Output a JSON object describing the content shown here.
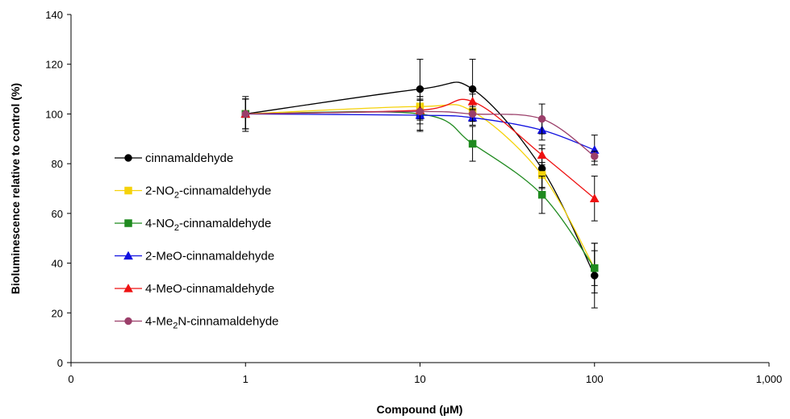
{
  "chart_data": {
    "type": "line",
    "title": "",
    "xlabel": "Compound (µM)",
    "ylabel": "Bioluminescence relative to control (%)",
    "xscale": "log",
    "xlim": [
      0.1,
      1000
    ],
    "ylim": [
      0,
      140
    ],
    "x_ticks": [
      0.1,
      1,
      10,
      100,
      1000
    ],
    "x_tick_labels": [
      "0",
      "1",
      "10",
      "100",
      "1,000"
    ],
    "y_ticks": [
      0,
      20,
      40,
      60,
      80,
      100,
      120,
      140
    ],
    "y_tick_labels": [
      "0",
      "20",
      "40",
      "60",
      "80",
      "100",
      "120",
      "140"
    ],
    "grid": false,
    "legend_position": "left",
    "series": [
      {
        "name": "cinnamaldehyde",
        "name_parts": [
          "cinnamaldehyde"
        ],
        "color": "#000000",
        "marker": "circle",
        "x": [
          1,
          10,
          20,
          50,
          100
        ],
        "y": [
          100,
          110,
          110,
          78,
          35
        ],
        "error": [
          7,
          12,
          12,
          8,
          13
        ]
      },
      {
        "name": "2-NO2-cinnamaldehyde",
        "name_parts": [
          "2-NO",
          "2",
          "-cinnamaldehyde"
        ],
        "color": "#f5d20a",
        "marker": "square",
        "x": [
          1,
          10,
          20,
          50,
          100
        ],
        "y": [
          100,
          103,
          101,
          75.5,
          38
        ],
        "error": [
          6,
          4,
          3,
          5,
          10
        ]
      },
      {
        "name": "4-NO2-cinnamaldehyde",
        "name_parts": [
          "4-NO",
          "2",
          "-cinnamaldehyde"
        ],
        "color": "#1f8a1f",
        "marker": "square",
        "x": [
          1,
          10,
          20,
          50,
          100
        ],
        "y": [
          100,
          100,
          88,
          67.5,
          38
        ],
        "error": [
          6,
          7,
          7,
          7.5,
          7
        ]
      },
      {
        "name": "2-MeO-cinnamaldehyde",
        "name_parts": [
          "2-MeO-cinnamaldehyde"
        ],
        "color": "#1010e0",
        "marker": "triangle",
        "x": [
          1,
          10,
          20,
          50,
          100
        ],
        "y": [
          100,
          99.5,
          98.5,
          93.5,
          85.5
        ],
        "error": [
          6,
          6,
          3,
          4,
          6
        ]
      },
      {
        "name": "4-MeO-cinnamaldehyde",
        "name_parts": [
          "4-MeO-cinnamaldehyde"
        ],
        "color": "#ee1111",
        "marker": "triangle",
        "x": [
          1,
          10,
          20,
          50,
          100
        ],
        "y": [
          100,
          101.5,
          105,
          83.5,
          66
        ],
        "error": [
          6,
          4,
          3,
          4,
          9
        ]
      },
      {
        "name": "4-Me2N-cinnamaldehyde",
        "name_parts": [
          "4-Me",
          "2",
          "N-cinnamaldehyde"
        ],
        "color": "#9b3f6a",
        "marker": "circle",
        "x": [
          1,
          10,
          20,
          50,
          100
        ],
        "y": [
          100,
          101,
          100,
          98,
          83
        ],
        "error": [
          6,
          5,
          3,
          6,
          2
        ]
      }
    ]
  }
}
